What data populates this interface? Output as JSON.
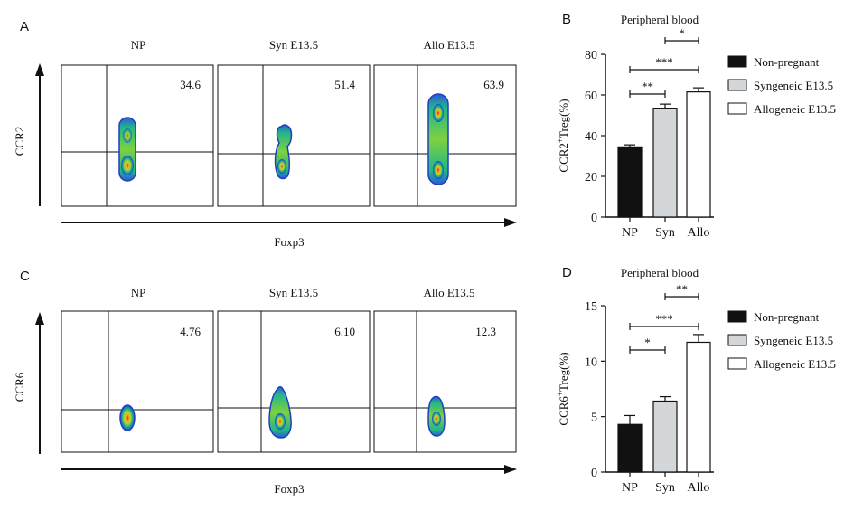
{
  "flow_rows": [
    {
      "letter": "A",
      "y_label": "CCR2",
      "x_label": "Foxp3",
      "panels": [
        {
          "title": "NP",
          "percent": "34.6"
        },
        {
          "title": "Syn E13.5",
          "percent": "51.4"
        },
        {
          "title": "Allo E13.5",
          "percent": "63.9"
        }
      ]
    },
    {
      "letter": "C",
      "y_label": "CCR6",
      "x_label": "Foxp3",
      "panels": [
        {
          "title": "NP",
          "percent": "4.76"
        },
        {
          "title": "Syn E13.5",
          "percent": "6.10"
        },
        {
          "title": "Allo E13.5",
          "percent": "12.3"
        }
      ]
    }
  ],
  "legend": [
    "Non-pregnant",
    "Syngeneic E13.5",
    "Allogeneic E13.5"
  ],
  "bar_colors": [
    "#111111",
    "#d3d7d9",
    "#ffffff"
  ],
  "chart_data": [
    {
      "type": "bar",
      "panel": "B",
      "title": "Peripheral blood",
      "categories": [
        "NP",
        "Syn",
        "Allo"
      ],
      "values": [
        34.5,
        53.5,
        61.5
      ],
      "errors": [
        1.0,
        2.0,
        2.0
      ],
      "ylabel_main": "CCR2",
      "ylabel_sup": "+",
      "ylabel_rest": "Treg(%)",
      "ylim": [
        0,
        80
      ],
      "yticks": [
        0,
        20,
        40,
        60,
        80
      ],
      "significance": [
        {
          "from": 0,
          "to": 1,
          "label": "**"
        },
        {
          "from": 0,
          "to": 2,
          "label": "***"
        },
        {
          "from": 1,
          "to": 2,
          "label": "*"
        }
      ]
    },
    {
      "type": "bar",
      "panel": "D",
      "title": "Peripheral blood",
      "categories": [
        "NP",
        "Syn",
        "Allo"
      ],
      "values": [
        4.3,
        6.4,
        11.7
      ],
      "errors": [
        0.8,
        0.4,
        0.7
      ],
      "ylabel_main": "CCR6",
      "ylabel_sup": "+",
      "ylabel_rest": "Treg(%)",
      "ylim": [
        0,
        15
      ],
      "yticks": [
        0,
        5,
        10,
        15
      ],
      "significance": [
        {
          "from": 0,
          "to": 1,
          "label": "*"
        },
        {
          "from": 0,
          "to": 2,
          "label": "***"
        },
        {
          "from": 1,
          "to": 2,
          "label": "**"
        }
      ]
    }
  ]
}
